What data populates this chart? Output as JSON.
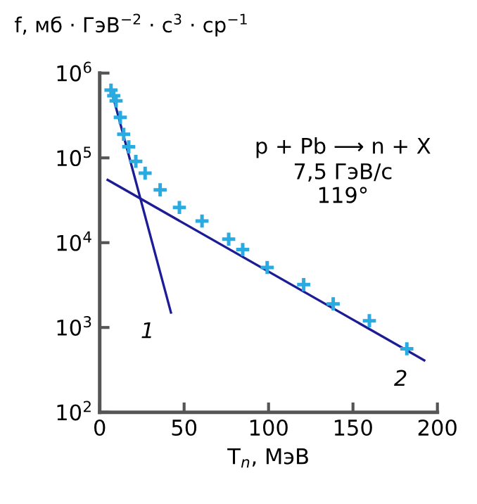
{
  "chart_data": {
    "type": "scatter",
    "ylabel": "f, мб · ГэВ$^{−2}$ · c$^{3}$ · ср$^{−1}$",
    "xlabel": "T$_{n}$, МэВ",
    "annotations": [
      "p + Pb ⟶ n + X",
      "7,5 ГэВ/c",
      "119°"
    ],
    "log": "y",
    "xlim": [
      0,
      200
    ],
    "xticks": [
      0,
      50,
      100,
      150,
      200
    ],
    "ylim": [
      100,
      1000000
    ],
    "yticks": [
      {
        "value": 100,
        "label": "10$^{2}$"
      },
      {
        "value": 1000,
        "label": "10$^{3}$"
      },
      {
        "value": 10000,
        "label": "10$^{4}$"
      },
      {
        "value": 100000,
        "label": "10$^{5}$"
      },
      {
        "value": 1000000,
        "label": "10$^{6}$"
      }
    ],
    "grid": false,
    "series": [
      {
        "marker": "cross",
        "color": "#29abe2",
        "x": [
          6.7,
          8.3,
          9.7,
          12.2,
          14.2,
          17.2,
          21.4,
          26.9,
          35.8,
          47.2,
          60.6,
          76.4,
          84.7,
          99.2,
          120.8,
          138.3,
          159.7,
          181.9
        ],
        "values": [
          630000,
          540000,
          470000,
          300000,
          190000,
          135000,
          91000,
          66000,
          42000,
          26000,
          18000,
          11000,
          8300,
          5100,
          3200,
          1900,
          1200,
          560
        ]
      },
      {
        "type": "line",
        "name": "1",
        "color": "#1c1c96",
        "x": [
          6.7,
          42.2
        ],
        "values": [
          650000,
          1500
        ]
      },
      {
        "type": "line",
        "name": "2",
        "color": "#1c1c96",
        "x": [
          4.7,
          192.2
        ],
        "values": [
          55000,
          410
        ]
      }
    ]
  }
}
